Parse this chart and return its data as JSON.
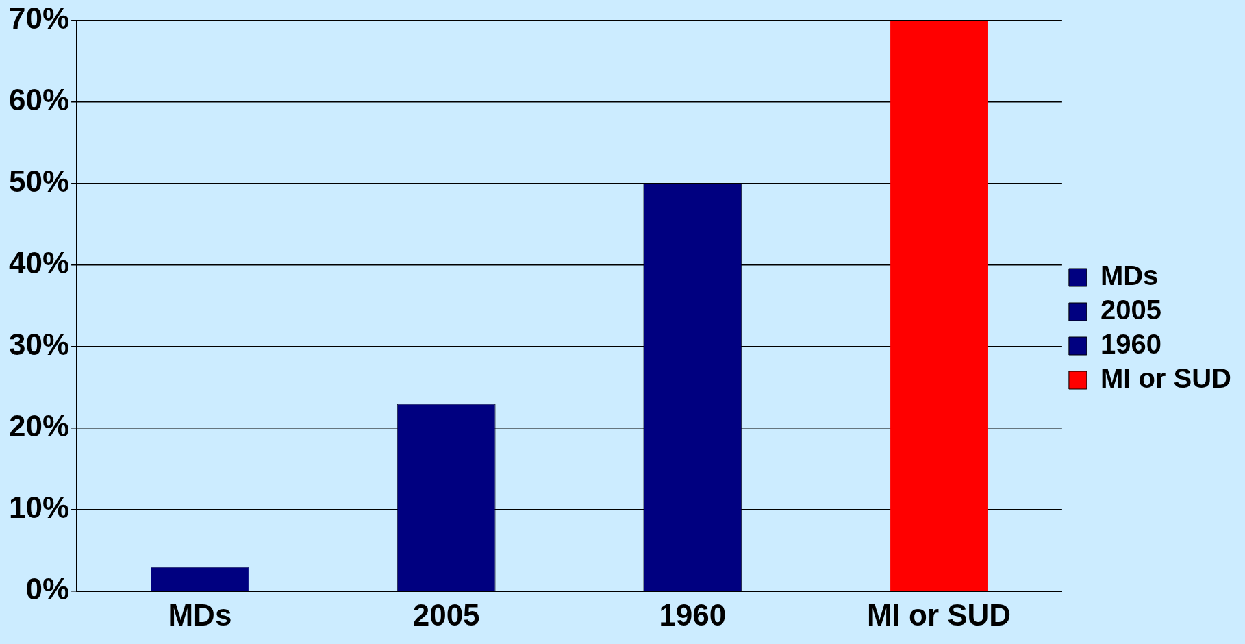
{
  "chart_data": {
    "type": "bar",
    "categories": [
      "MDs",
      "2005",
      "1960",
      "MI or SUD"
    ],
    "series": [
      {
        "name": "MDs",
        "color": "#000080",
        "values": [
          3,
          null,
          null,
          null
        ]
      },
      {
        "name": "2005",
        "color": "#000080",
        "values": [
          null,
          23,
          null,
          null
        ]
      },
      {
        "name": "1960",
        "color": "#000080",
        "values": [
          null,
          null,
          50,
          null
        ]
      },
      {
        "name": "MI or SUD",
        "color": "#ff0000",
        "values": [
          null,
          null,
          null,
          70
        ]
      }
    ],
    "ylim": [
      0,
      70
    ],
    "yticks": [
      {
        "value": 0,
        "label": "0%"
      },
      {
        "value": 10,
        "label": "10%"
      },
      {
        "value": 20,
        "label": "20%"
      },
      {
        "value": 30,
        "label": "30%"
      },
      {
        "value": 40,
        "label": "40%"
      },
      {
        "value": 50,
        "label": "50%"
      },
      {
        "value": 60,
        "label": "60%"
      },
      {
        "value": 70,
        "label": "70%"
      }
    ],
    "grid": "y",
    "legend": "right"
  }
}
